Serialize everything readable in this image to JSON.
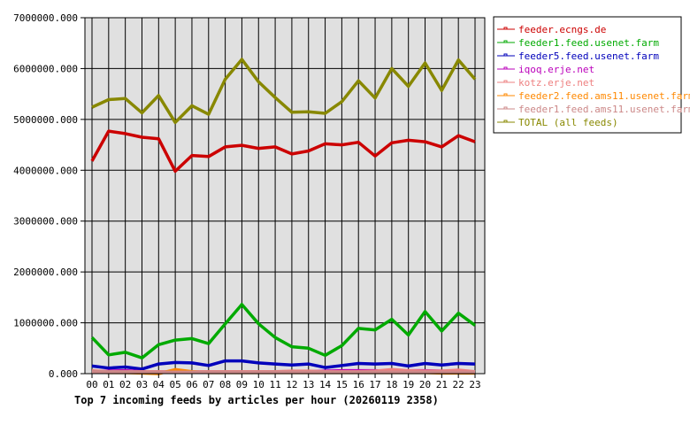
{
  "chart_data": {
    "type": "line",
    "title": "Top 7 incoming feeds by articles per hour (20260119 2358)",
    "xlabel": "",
    "ylabel": "",
    "ylim": [
      0,
      7000000
    ],
    "grid": true,
    "legend_position": "right",
    "y_ticks": [
      "0.000",
      "1000000.000",
      "2000000.000",
      "3000000.000",
      "4000000.000",
      "5000000.000",
      "6000000.000",
      "7000000.000"
    ],
    "categories": [
      "00",
      "01",
      "02",
      "03",
      "04",
      "05",
      "06",
      "07",
      "08",
      "09",
      "10",
      "11",
      "12",
      "13",
      "14",
      "15",
      "16",
      "17",
      "18",
      "19",
      "20",
      "21",
      "22",
      "23"
    ],
    "series": [
      {
        "name": "feeder.ecngs.de",
        "color": "#cc0000",
        "values": [
          4180000,
          4770000,
          4720000,
          4650000,
          4620000,
          3980000,
          4290000,
          4270000,
          4460000,
          4490000,
          4430000,
          4460000,
          4320000,
          4380000,
          4520000,
          4500000,
          4550000,
          4280000,
          4540000,
          4590000,
          4560000,
          4460000,
          4680000,
          4560000
        ]
      },
      {
        "name": "feeder1.feed.usenet.farm",
        "color": "#00aa00",
        "values": [
          710000,
          370000,
          420000,
          310000,
          570000,
          660000,
          690000,
          590000,
          980000,
          1360000,
          980000,
          710000,
          530000,
          500000,
          360000,
          550000,
          890000,
          860000,
          1070000,
          760000,
          1220000,
          840000,
          1190000,
          950000
        ]
      },
      {
        "name": "feeder5.feed.usenet.farm",
        "color": "#0000bb",
        "values": [
          150000,
          110000,
          130000,
          90000,
          190000,
          220000,
          210000,
          160000,
          250000,
          250000,
          210000,
          190000,
          170000,
          190000,
          120000,
          160000,
          200000,
          190000,
          200000,
          150000,
          200000,
          170000,
          200000,
          190000
        ]
      },
      {
        "name": "iqoq.erje.net",
        "color": "#bb00bb",
        "values": [
          40000,
          50000,
          60000,
          40000,
          30000,
          40000,
          40000,
          40000,
          40000,
          40000,
          40000,
          40000,
          40000,
          40000,
          50000,
          60000,
          60000,
          60000,
          50000,
          60000,
          60000,
          50000,
          40000,
          40000
        ]
      },
      {
        "name": "kotz.erje.net",
        "color": "#ee8080",
        "values": [
          60000,
          40000,
          40000,
          40000,
          40000,
          40000,
          40000,
          40000,
          40000,
          40000,
          40000,
          40000,
          50000,
          50000,
          40000,
          40000,
          40000,
          50000,
          80000,
          60000,
          50000,
          50000,
          70000,
          40000
        ]
      },
      {
        "name": "feeder2.feed.ams11.usenet.farm",
        "color": "#ff8800",
        "values": [
          30000,
          20000,
          20000,
          10000,
          0,
          80000,
          40000,
          20000,
          20000,
          20000,
          20000,
          20000,
          20000,
          20000,
          20000,
          20000,
          20000,
          20000,
          20000,
          20000,
          20000,
          10000,
          10000,
          10000
        ]
      },
      {
        "name": "feeder1.feed.ams11.usenet.farm",
        "color": "#cc8888",
        "values": [
          40000,
          40000,
          40000,
          30000,
          30000,
          30000,
          30000,
          30000,
          30000,
          30000,
          30000,
          30000,
          30000,
          30000,
          30000,
          30000,
          30000,
          30000,
          30000,
          30000,
          30000,
          30000,
          30000,
          30000
        ]
      },
      {
        "name": "TOTAL (all feeds)",
        "color": "#888800",
        "values": [
          5240000,
          5390000,
          5410000,
          5130000,
          5470000,
          4940000,
          5270000,
          5100000,
          5790000,
          6180000,
          5740000,
          5430000,
          5140000,
          5150000,
          5120000,
          5350000,
          5760000,
          5420000,
          6000000,
          5650000,
          6110000,
          5570000,
          6170000,
          5790000
        ]
      }
    ]
  }
}
